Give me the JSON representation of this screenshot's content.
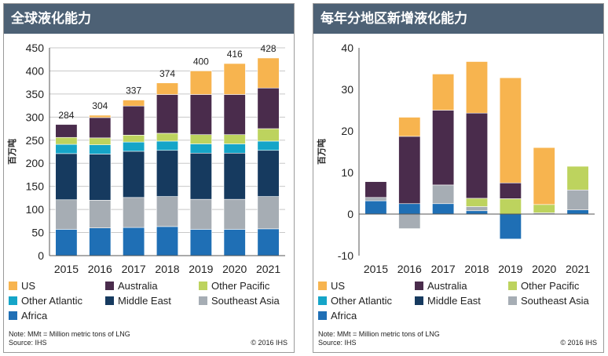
{
  "chart_data": [
    {
      "type": "bar",
      "stacked": true,
      "title": "全球液化能力",
      "ylabel": "百万吨",
      "xlabel": "",
      "ylim": [
        0,
        450
      ],
      "yticks": [
        0,
        50,
        100,
        150,
        200,
        250,
        300,
        350,
        400,
        450
      ],
      "grid": true,
      "categories": [
        "2015",
        "2016",
        "2017",
        "2018",
        "2019",
        "2020",
        "2021"
      ],
      "series": [
        {
          "name": "Africa",
          "color": "#1f6fb5",
          "values": [
            57,
            60,
            61,
            63,
            57,
            57,
            58
          ]
        },
        {
          "name": "Southeast Asia",
          "color": "#a6adb4",
          "values": [
            64,
            60,
            65,
            65,
            65,
            65,
            70
          ]
        },
        {
          "name": "Middle East",
          "color": "#163a5f",
          "values": [
            100,
            100,
            100,
            100,
            100,
            100,
            100
          ]
        },
        {
          "name": "Other Atlantic",
          "color": "#15a5c8",
          "values": [
            20,
            20,
            20,
            20,
            20,
            20,
            20
          ]
        },
        {
          "name": "Other Pacific",
          "color": "#bdd35e",
          "values": [
            15,
            15,
            15,
            17,
            20,
            20,
            27
          ]
        },
        {
          "name": "Australia",
          "color": "#4a2c4c",
          "values": [
            28,
            44,
            63,
            84,
            87,
            87,
            88
          ]
        },
        {
          "name": "US",
          "color": "#f7b44f",
          "values": [
            0,
            5,
            13,
            25,
            51,
            67,
            65
          ]
        }
      ],
      "totals": [
        284,
        304,
        337,
        374,
        400,
        416,
        428
      ]
    },
    {
      "type": "bar",
      "stacked": true,
      "title": "每年分地区新增液化能力",
      "ylabel": "百万吨",
      "xlabel": "",
      "ylim": [
        -10,
        40
      ],
      "yticks": [
        -10,
        0,
        10,
        20,
        30,
        40
      ],
      "grid": false,
      "categories": [
        "2015",
        "2016",
        "2017",
        "2018",
        "2019",
        "2020",
        "2021"
      ],
      "series": [
        {
          "name": "Africa",
          "color": "#1f6fb5",
          "values": [
            3.2,
            2.5,
            2.5,
            0.8,
            -6.0,
            0.0,
            1.0
          ]
        },
        {
          "name": "Southeast Asia",
          "color": "#a6adb4",
          "values": [
            0.8,
            -3.5,
            4.5,
            1.0,
            0.0,
            0.3,
            4.8
          ]
        },
        {
          "name": "Middle East",
          "color": "#163a5f",
          "values": [
            0,
            0,
            0,
            0,
            0,
            0,
            0
          ]
        },
        {
          "name": "Other Atlantic",
          "color": "#15a5c8",
          "values": [
            0,
            0,
            0,
            0,
            0,
            0,
            0
          ]
        },
        {
          "name": "Other Pacific",
          "color": "#bdd35e",
          "values": [
            0,
            0,
            0,
            2.0,
            3.7,
            2.0,
            5.7
          ]
        },
        {
          "name": "Australia",
          "color": "#4a2c4c",
          "values": [
            3.8,
            16.2,
            18.0,
            20.5,
            3.8,
            0.0,
            0.0
          ]
        },
        {
          "name": "US",
          "color": "#f7b44f",
          "values": [
            0,
            4.6,
            8.7,
            12.4,
            25.3,
            13.7,
            0.0
          ]
        }
      ]
    }
  ],
  "legend": [
    {
      "label": "US",
      "color": "#f7b44f"
    },
    {
      "label": "Australia",
      "color": "#4a2c4c"
    },
    {
      "label": "Other Pacific",
      "color": "#bdd35e"
    },
    {
      "label": "Other Atlantic",
      "color": "#15a5c8"
    },
    {
      "label": "Middle East",
      "color": "#163a5f"
    },
    {
      "label": "Southeast Asia",
      "color": "#a6adb4"
    },
    {
      "label": "Africa",
      "color": "#1f6fb5"
    }
  ],
  "panels": [
    {
      "title": "全球液化能力",
      "note": "Note: MMt = Million metric tons of LNG",
      "source": "Source: IHS",
      "copyright": "© 2016 IHS"
    },
    {
      "title": "每年分地区新增液化能力",
      "note": "Note: MMt = Million metric tons of LNG",
      "source": "Source: IHS",
      "copyright": "© 2016 IHS"
    }
  ],
  "colors": {
    "header": "#4d6175",
    "grid": "#c8c8c8",
    "axis": "#555555"
  }
}
